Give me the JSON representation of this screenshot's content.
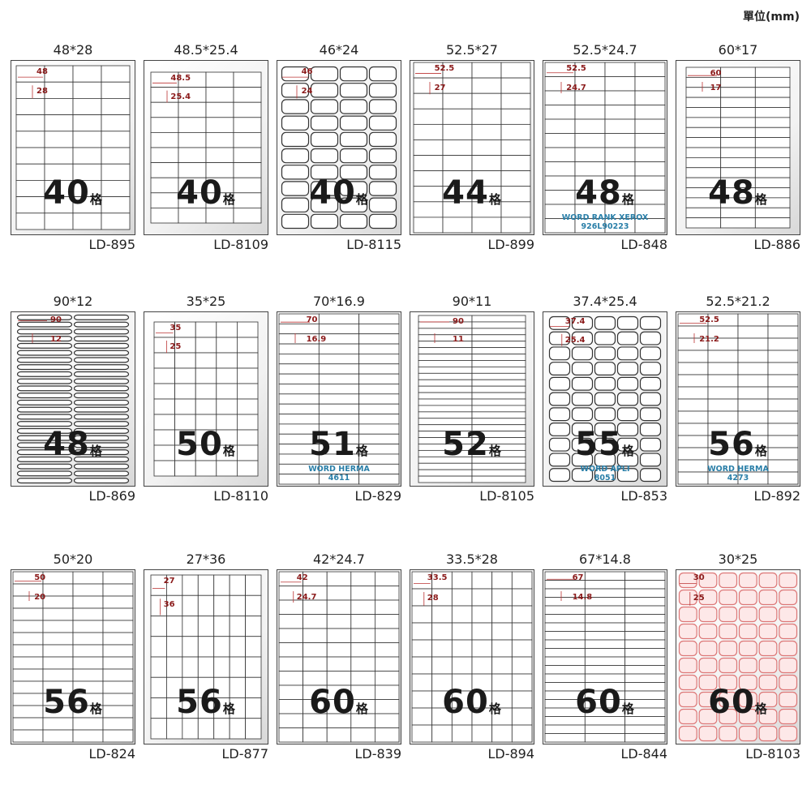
{
  "header": {
    "unit": "單位(mm)"
  },
  "count_unit": "格",
  "items": [
    {
      "size": "48*28",
      "width": "48",
      "height": "28",
      "count": "40",
      "code": "LD-895"
    },
    {
      "size": "48.5*25.4",
      "width": "48.5",
      "height": "25.4",
      "count": "40",
      "code": "LD-8109"
    },
    {
      "size": "46*24",
      "width": "46",
      "height": "24",
      "count": "40",
      "code": "LD-8115"
    },
    {
      "size": "52.5*27",
      "width": "52.5",
      "height": "27",
      "count": "44",
      "code": "LD-899"
    },
    {
      "size": "52.5*24.7",
      "width": "52.5",
      "height": "24.7",
      "count": "48",
      "code": "LD-848",
      "compat": [
        "WORD RANK XEROX",
        "926L90223"
      ]
    },
    {
      "size": "60*17",
      "width": "60",
      "height": "17",
      "count": "48",
      "code": "LD-886"
    },
    {
      "size": "90*12",
      "width": "90",
      "height": "12",
      "count": "48",
      "code": "LD-869"
    },
    {
      "size": "35*25",
      "width": "35",
      "height": "25",
      "count": "50",
      "code": "LD-8110"
    },
    {
      "size": "70*16.9",
      "width": "70",
      "height": "16.9",
      "count": "51",
      "code": "LD-829",
      "compat": [
        "WORD HERMA",
        "4611"
      ]
    },
    {
      "size": "90*11",
      "width": "90",
      "height": "11",
      "count": "52",
      "code": "LD-8105"
    },
    {
      "size": "37.4*25.4",
      "width": "37.4",
      "height": "25.4",
      "count": "55",
      "code": "LD-853",
      "compat": [
        "WORD APLI",
        "8051"
      ]
    },
    {
      "size": "52.5*21.2",
      "width": "52.5",
      "height": "21.2",
      "count": "56",
      "code": "LD-892",
      "compat": [
        "WORD HERMA",
        "4273"
      ]
    },
    {
      "size": "50*20",
      "width": "50",
      "height": "20",
      "count": "56",
      "code": "LD-824"
    },
    {
      "size": "27*36",
      "width": "27",
      "height": "36",
      "count": "56",
      "code": "LD-877"
    },
    {
      "size": "42*24.7",
      "width": "42",
      "height": "24.7",
      "count": "60",
      "code": "LD-839"
    },
    {
      "size": "33.5*28",
      "width": "33.5",
      "height": "28",
      "count": "60",
      "code": "LD-894"
    },
    {
      "size": "67*14.8",
      "width": "67",
      "height": "14.8",
      "count": "60",
      "code": "LD-844"
    },
    {
      "size": "30*25",
      "width": "30",
      "height": "25",
      "count": "60",
      "code": "LD-8103"
    }
  ]
}
